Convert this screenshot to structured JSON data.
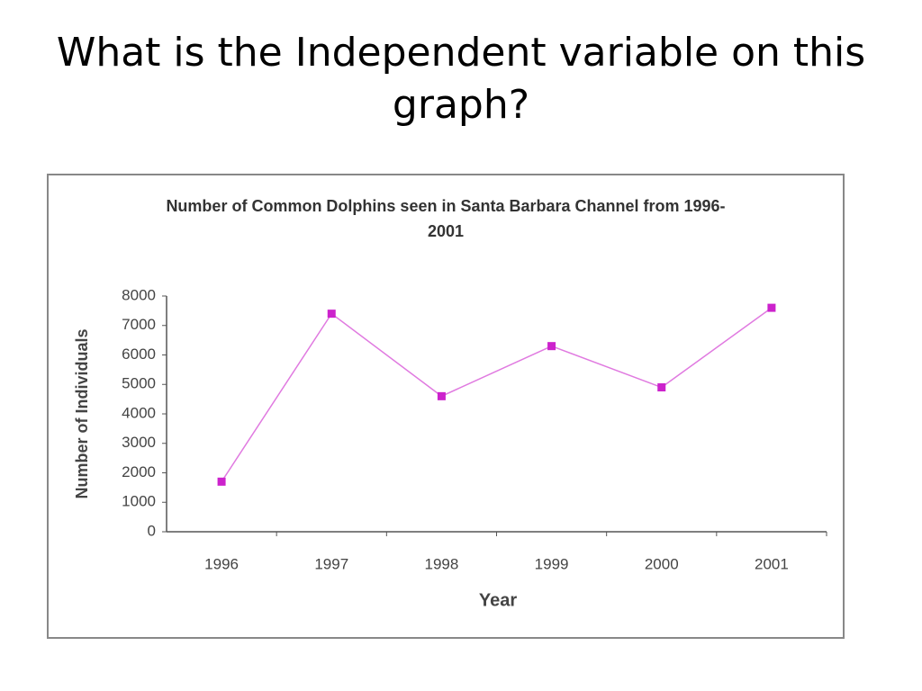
{
  "slide_title": "What is the Independent variable on this graph?",
  "chart_data": {
    "type": "line",
    "title": "Number of Common Dolphins seen in Santa Barbara Channel from 1996-2001",
    "x_label": "Year",
    "y_label": "Number of Individuals",
    "categories": [
      "1996",
      "1997",
      "1998",
      "1999",
      "2000",
      "2001"
    ],
    "values": [
      1700,
      7400,
      4600,
      6300,
      4900,
      7600
    ],
    "color": "#cc22cc",
    "ylim": [
      0,
      8000
    ],
    "yticks": [
      0,
      1000,
      2000,
      3000,
      4000,
      5000,
      6000,
      7000,
      8000
    ],
    "grid": false
  }
}
